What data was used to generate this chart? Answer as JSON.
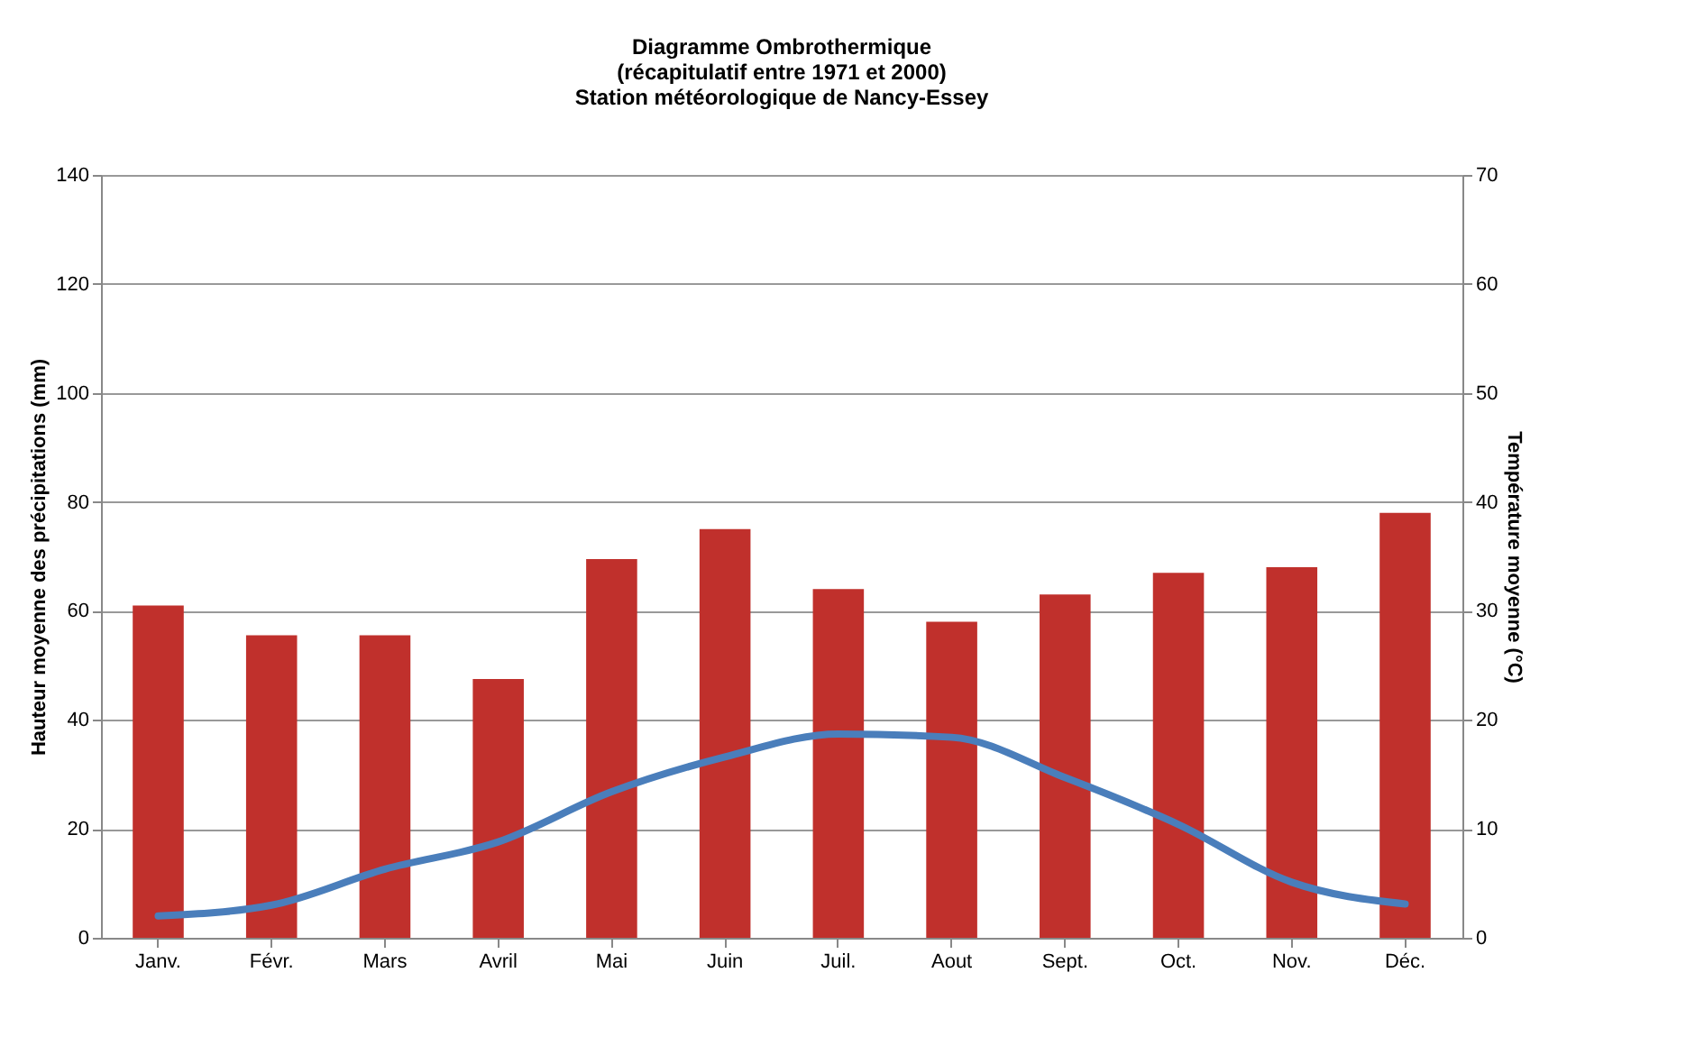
{
  "chart_data": {
    "type": "bar",
    "title": "Diagramme Ombrothermique\n(récapitulatif entre 1971 et 2000)\nStation météorologique de Nancy-Essey",
    "categories": [
      "Janv.",
      "Févr.",
      "Mars",
      "Avril",
      "Mai",
      "Juin",
      "Juil.",
      "Aout",
      "Sept.",
      "Oct.",
      "Nov.",
      "Déc."
    ],
    "series": [
      {
        "color": "#c0302c",
        "values": [
          61,
          55.5,
          55.5,
          47.5,
          69.5,
          75,
          64,
          58,
          63,
          67,
          68,
          78
        ]
      },
      {
        "type": "line",
        "axis": "y2",
        "color": "#4a7ebb",
        "values": [
          2,
          3,
          6.3,
          8.8,
          13.4,
          16.6,
          18.7,
          18.4,
          14.7,
          10.4,
          5.1,
          3.1
        ]
      }
    ],
    "ylabel": "Hauteur moyenne des précipitations (mm)",
    "y2label": "Température moyenne (°C)",
    "ylim": [
      0,
      140
    ],
    "yticks": [
      0,
      20,
      40,
      60,
      80,
      100,
      120,
      140
    ],
    "y2lim": [
      0,
      70
    ],
    "y2ticks": [
      0,
      10,
      20,
      30,
      40,
      50,
      60,
      70
    ],
    "grid": "y",
    "marker": "none",
    "line_style": "solid"
  }
}
